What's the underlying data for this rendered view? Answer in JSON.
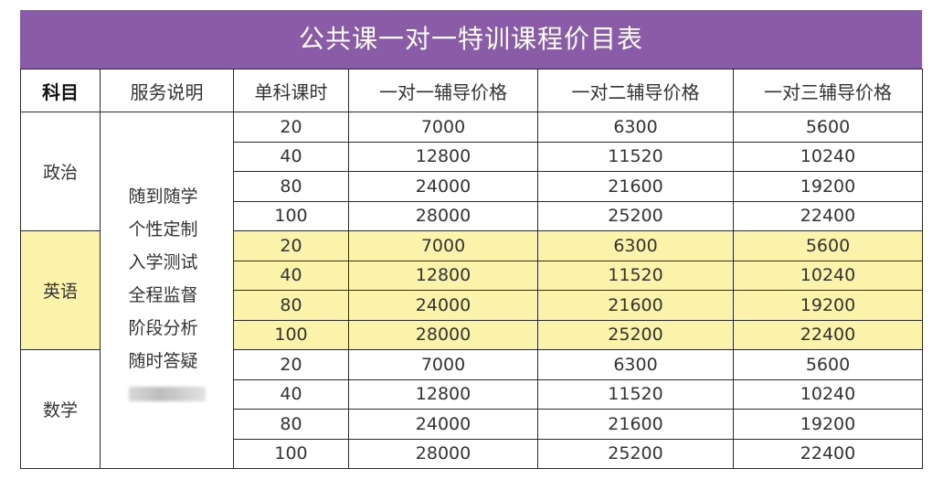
{
  "title": "公共课一对一特训课程价目表",
  "headers": {
    "subject": "科目",
    "service": "服务说明",
    "hours": "单科课时",
    "one_on_one": "一对一辅导价格",
    "one_on_two": "一对二辅导价格",
    "one_on_three": "一对三辅导价格"
  },
  "services": [
    "随到随学",
    "个性定制",
    "入学测试",
    "全程监督",
    "阶段分析",
    "随时答疑"
  ],
  "subjects": [
    {
      "name": "政治",
      "rows": [
        {
          "hours": "20",
          "p1": "7000",
          "p2": "6300",
          "p3": "5600"
        },
        {
          "hours": "40",
          "p1": "12800",
          "p2": "11520",
          "p3": "10240"
        },
        {
          "hours": "80",
          "p1": "24000",
          "p2": "21600",
          "p3": "19200"
        },
        {
          "hours": "100",
          "p1": "28000",
          "p2": "25200",
          "p3": "22400"
        }
      ]
    },
    {
      "name": "英语",
      "rows": [
        {
          "hours": "20",
          "p1": "7000",
          "p2": "6300",
          "p3": "5600"
        },
        {
          "hours": "40",
          "p1": "12800",
          "p2": "11520",
          "p3": "10240"
        },
        {
          "hours": "80",
          "p1": "24000",
          "p2": "21600",
          "p3": "19200"
        },
        {
          "hours": "100",
          "p1": "28000",
          "p2": "25200",
          "p3": "22400"
        }
      ]
    },
    {
      "name": "数学",
      "rows": [
        {
          "hours": "20",
          "p1": "7000",
          "p2": "6300",
          "p3": "5600"
        },
        {
          "hours": "40",
          "p1": "12800",
          "p2": "11520",
          "p3": "10240"
        },
        {
          "hours": "80",
          "p1": "24000",
          "p2": "21600",
          "p3": "19200"
        },
        {
          "hours": "100",
          "p1": "28000",
          "p2": "25200",
          "p3": "22400"
        }
      ]
    }
  ],
  "colors": {
    "title_bg": "#8a5ca7",
    "highlight": "#fbf3a9"
  }
}
